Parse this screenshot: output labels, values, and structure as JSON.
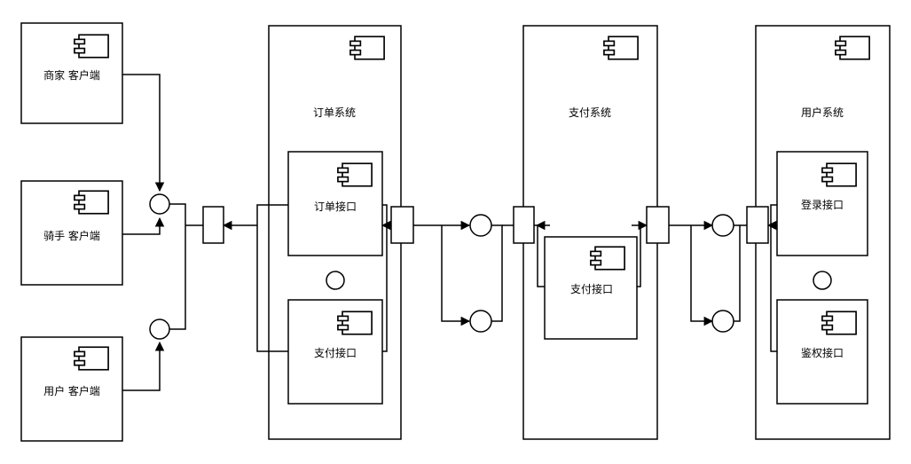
{
  "clients": {
    "merchant": "商家 客户端",
    "rider": "骑手 客户端",
    "user": "用户 客户端"
  },
  "systems": {
    "order": {
      "title": "订单系统",
      "components": [
        "订单接口",
        "支付接口"
      ]
    },
    "payment": {
      "title": "支付系统",
      "components": [
        "支付接口"
      ]
    },
    "user": {
      "title": "用户系统",
      "components": [
        "登录接口",
        "鉴权接口"
      ]
    }
  },
  "colors": {
    "stroke": "#000000",
    "fill": "#ffffff"
  }
}
